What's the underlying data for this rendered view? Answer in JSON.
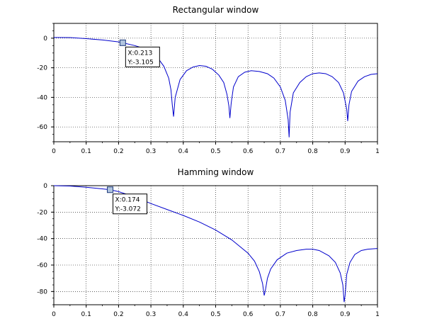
{
  "chart_data": [
    {
      "type": "line",
      "title": "Rectangular window",
      "xlim": [
        0,
        1
      ],
      "ylim": [
        -70,
        10
      ],
      "xticks": [
        "0",
        "0.1",
        "0.2",
        "0.3",
        "0.4",
        "0.5",
        "0.6",
        "0.7",
        "0.8",
        "0.9",
        "1"
      ],
      "yticks": [
        "0",
        "-20",
        "-40",
        "-60"
      ],
      "grid": true,
      "series": [
        {
          "color": "#0000cc",
          "x": [
            0,
            0.05,
            0.1,
            0.15,
            0.2,
            0.213,
            0.25,
            0.28,
            0.3,
            0.32,
            0.34,
            0.355,
            0.362,
            0.366,
            0.37,
            0.375,
            0.39,
            0.41,
            0.43,
            0.45,
            0.47,
            0.49,
            0.51,
            0.525,
            0.535,
            0.541,
            0.544,
            0.548,
            0.555,
            0.57,
            0.59,
            0.61,
            0.635,
            0.66,
            0.68,
            0.7,
            0.715,
            0.724,
            0.727,
            0.73,
            0.74,
            0.76,
            0.78,
            0.8,
            0.82,
            0.84,
            0.86,
            0.88,
            0.895,
            0.905,
            0.908,
            0.912,
            0.92,
            0.94,
            0.96,
            0.98,
            1.0
          ],
          "y": [
            0.5,
            0.4,
            -0.3,
            -1.2,
            -2.5,
            -3.105,
            -5,
            -7,
            -9.5,
            -13,
            -19,
            -27,
            -35,
            -45,
            -53,
            -40,
            -28,
            -22,
            -19.5,
            -18.5,
            -19,
            -21,
            -25,
            -30,
            -38,
            -46,
            -54,
            -44,
            -33,
            -26,
            -23,
            -22,
            -22.5,
            -24,
            -27,
            -33,
            -42,
            -55,
            -67,
            -50,
            -37,
            -30,
            -26,
            -24,
            -23.5,
            -24,
            -26,
            -30,
            -37,
            -48,
            -56,
            -45,
            -36,
            -29,
            -26,
            -24.5,
            -24
          ]
        }
      ],
      "datatip": {
        "x": 0.213,
        "y": -3.105,
        "label_x": "X:0.213",
        "label_y": "Y:-3.105"
      }
    },
    {
      "type": "line",
      "title": "Hamming window",
      "xlim": [
        0,
        1
      ],
      "ylim": [
        -90,
        0
      ],
      "xticks": [
        "0",
        "0.1",
        "0.2",
        "0.3",
        "0.4",
        "0.5",
        "0.6",
        "0.7",
        "0.8",
        "0.9",
        "1"
      ],
      "yticks": [
        "0",
        "-20",
        "-40",
        "-60",
        "-80"
      ],
      "grid": true,
      "series": [
        {
          "color": "#0000cc",
          "x": [
            0,
            0.05,
            0.1,
            0.15,
            0.174,
            0.2,
            0.25,
            0.3,
            0.35,
            0.4,
            0.45,
            0.5,
            0.55,
            0.6,
            0.62,
            0.635,
            0.645,
            0.65,
            0.653,
            0.66,
            0.67,
            0.69,
            0.72,
            0.75,
            0.78,
            0.8,
            0.82,
            0.85,
            0.87,
            0.885,
            0.893,
            0.897,
            0.9,
            0.905,
            0.915,
            0.93,
            0.95,
            0.97,
            1.0
          ],
          "y": [
            0,
            -0.3,
            -1.2,
            -2.4,
            -3.072,
            -4.5,
            -8.5,
            -13.5,
            -18,
            -22.5,
            -27.5,
            -33.5,
            -41,
            -51,
            -57,
            -65,
            -74,
            -83,
            -80,
            -70,
            -63,
            -56,
            -51,
            -49,
            -48,
            -48,
            -49,
            -53,
            -58,
            -66,
            -75,
            -88,
            -83,
            -67,
            -58,
            -52,
            -49,
            -48,
            -47.5
          ]
        }
      ],
      "datatip": {
        "x": 0.174,
        "y": -3.072,
        "label_x": "X:0.174",
        "label_y": "Y:-3.072"
      }
    }
  ]
}
